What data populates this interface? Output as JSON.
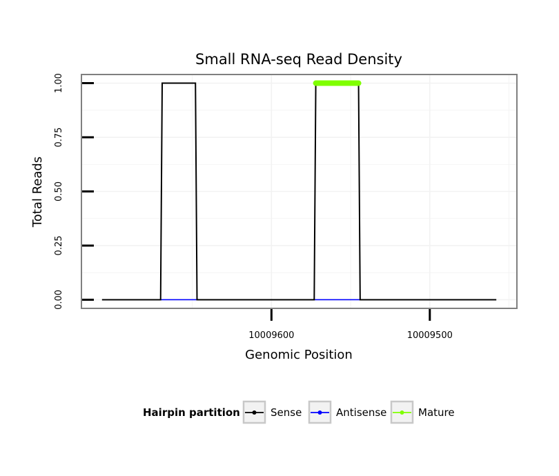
{
  "chart_data": {
    "type": "line",
    "title": "Small RNA-seq Read Density",
    "xlabel": "Genomic Position",
    "ylabel": "Total Reads",
    "xlim": [
      10009720,
      10009445
    ],
    "x_reversed": true,
    "ylim": [
      -0.04,
      1.04
    ],
    "grid": true,
    "x_ticks": [
      {
        "value": 10009600,
        "label": "10009600"
      },
      {
        "value": 10009500,
        "label": "10009500"
      }
    ],
    "y_ticks": [
      {
        "value": 0.0,
        "label": "0.00"
      },
      {
        "value": 0.25,
        "label": "0.25"
      },
      {
        "value": 0.5,
        "label": "0.50"
      },
      {
        "value": 0.75,
        "label": "0.75"
      },
      {
        "value": 1.0,
        "label": "1.00"
      }
    ],
    "legend": {
      "title": "Hairpin partition",
      "position": "bottom",
      "entries": [
        "Sense",
        "Antisense",
        "Mature"
      ]
    },
    "series": [
      {
        "name": "Sense",
        "color": "#000000",
        "x": [
          10009707,
          10009670,
          10009669,
          10009648,
          10009647,
          10009573,
          10009572,
          10009545,
          10009544,
          10009458
        ],
        "y": [
          0,
          0,
          1,
          1,
          0,
          0,
          1,
          1,
          0,
          0
        ]
      },
      {
        "name": "Antisense",
        "color": "#0000ff",
        "x": [
          10009670,
          10009647,
          10009573,
          10009544
        ],
        "y": [
          0,
          0,
          0,
          0
        ],
        "segments": [
          [
            0,
            1
          ],
          [
            2,
            3
          ]
        ]
      },
      {
        "name": "Mature",
        "color": "#7fff00",
        "x": [
          10009572,
          10009545
        ],
        "y": [
          1,
          1
        ]
      }
    ]
  }
}
